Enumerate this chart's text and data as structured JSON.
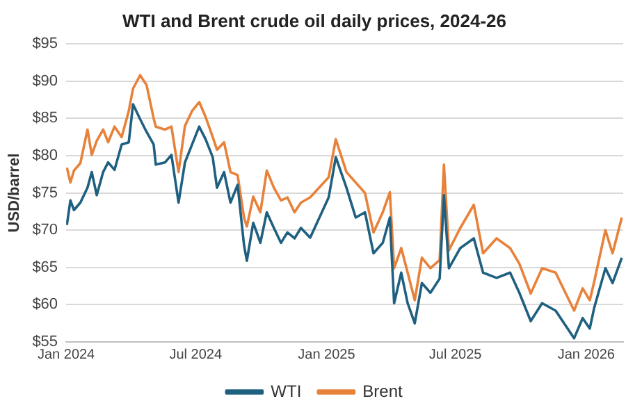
{
  "chart_data": {
    "type": "line",
    "title": "WTI and Brent crude oil daily prices, 2024-26",
    "ylabel": "USD/barrel",
    "xlim": [
      "2024-01-01",
      "2026-02-22"
    ],
    "xticks": [
      {
        "value": "2024-01",
        "label": "Jan 2024"
      },
      {
        "value": "2024-07",
        "label": "Jul 2024"
      },
      {
        "value": "2025-01",
        "label": "Jan 2025"
      },
      {
        "value": "2025-07",
        "label": "Jul 2025"
      },
      {
        "value": "2026-01",
        "label": "Jan 2026"
      }
    ],
    "ylim": [
      55,
      95
    ],
    "yticks": [
      {
        "value": 55,
        "label": "$55"
      },
      {
        "value": 60,
        "label": "$60"
      },
      {
        "value": 65,
        "label": "$65"
      },
      {
        "value": 70,
        "label": "$70"
      },
      {
        "value": 75,
        "label": "$75"
      },
      {
        "value": 80,
        "label": "$80"
      },
      {
        "value": 85,
        "label": "$85"
      },
      {
        "value": 90,
        "label": "$90"
      },
      {
        "value": 95,
        "label": "$95"
      }
    ],
    "grid": "y",
    "legend": "bottom",
    "marker": "none",
    "line_style": "solid",
    "x": [
      "2024-01-02",
      "2024-01-07",
      "2024-01-12",
      "2024-01-21",
      "2024-01-31",
      "2024-02-06",
      "2024-02-13",
      "2024-02-22",
      "2024-02-29",
      "2024-03-09",
      "2024-03-19",
      "2024-03-29",
      "2024-04-04",
      "2024-04-14",
      "2024-04-23",
      "2024-05-03",
      "2024-05-06",
      "2024-05-19",
      "2024-05-28",
      "2024-06-07",
      "2024-06-16",
      "2024-06-26",
      "2024-07-06",
      "2024-07-15",
      "2024-07-25",
      "2024-07-31",
      "2024-08-10",
      "2024-08-19",
      "2024-08-29",
      "2024-09-07",
      "2024-09-11",
      "2024-09-20",
      "2024-09-30",
      "2024-10-09",
      "2024-10-19",
      "2024-10-29",
      "2024-11-07",
      "2024-11-17",
      "2024-11-26",
      "2024-12-09",
      "2025-01-04",
      "2025-01-14",
      "2025-01-29",
      "2025-02-11",
      "2025-02-24",
      "2025-03-08",
      "2025-03-21",
      "2025-03-31",
      "2025-04-06",
      "2025-04-16",
      "2025-04-25",
      "2025-05-05",
      "2025-05-15",
      "2025-05-27",
      "2025-06-09",
      "2025-06-15",
      "2025-06-22",
      "2025-07-08",
      "2025-07-27",
      "2025-08-09",
      "2025-08-28",
      "2025-09-16",
      "2025-09-29",
      "2025-10-15",
      "2025-10-31",
      "2025-11-19",
      "2025-12-15",
      "2025-12-27",
      "2026-01-06",
      "2026-01-12",
      "2026-01-28",
      "2026-02-07",
      "2026-02-20"
    ],
    "series": [
      {
        "name": "WTI",
        "color": "#1f6080",
        "values": [
          70.7,
          74,
          72.7,
          73.7,
          75.7,
          77.8,
          74.7,
          77.8,
          79.1,
          78.1,
          81.5,
          81.8,
          86.9,
          84.9,
          83.2,
          81.5,
          78.8,
          79.1,
          80.1,
          73.7,
          79.1,
          81.5,
          83.9,
          82.2,
          79.8,
          75.7,
          77.8,
          73.7,
          76.1,
          68,
          65.9,
          71,
          68.3,
          72.4,
          70.3,
          68.3,
          69.7,
          68.9,
          70.3,
          69,
          74.4,
          79.8,
          75.7,
          71.7,
          72.4,
          66.9,
          68.3,
          71.7,
          60.2,
          64.3,
          60.2,
          57.5,
          62.9,
          61.6,
          63.5,
          74.7,
          64.9,
          67.6,
          68.9,
          64.3,
          63.6,
          64.3,
          61.6,
          57.8,
          60.2,
          59.2,
          55.5,
          58.2,
          56.8,
          59.5,
          64.9,
          62.9,
          66.3
        ]
      },
      {
        "name": "Brent",
        "color": "#e8823a",
        "values": [
          78.4,
          76.4,
          78,
          79,
          83.5,
          80.1,
          82,
          83.5,
          81.8,
          83.9,
          82.5,
          86,
          89,
          90.8,
          89.5,
          85,
          83.9,
          83.5,
          83.9,
          77.8,
          84,
          86,
          87.2,
          85.2,
          82.5,
          80.8,
          81.8,
          77.8,
          77.4,
          71.7,
          70.5,
          74.5,
          72.4,
          78,
          75.7,
          74,
          74.4,
          72.4,
          73.7,
          74.4,
          77.1,
          82.2,
          77.8,
          76.4,
          75,
          69.7,
          72.4,
          75.1,
          64.9,
          67.6,
          64.3,
          60.6,
          66.3,
          64.9,
          66,
          78.8,
          67.3,
          70.3,
          73.4,
          66.9,
          68.9,
          67.6,
          65.5,
          61.5,
          64.9,
          64.3,
          59.2,
          62.2,
          60.6,
          63,
          70,
          66.9,
          71.7
        ]
      }
    ]
  }
}
